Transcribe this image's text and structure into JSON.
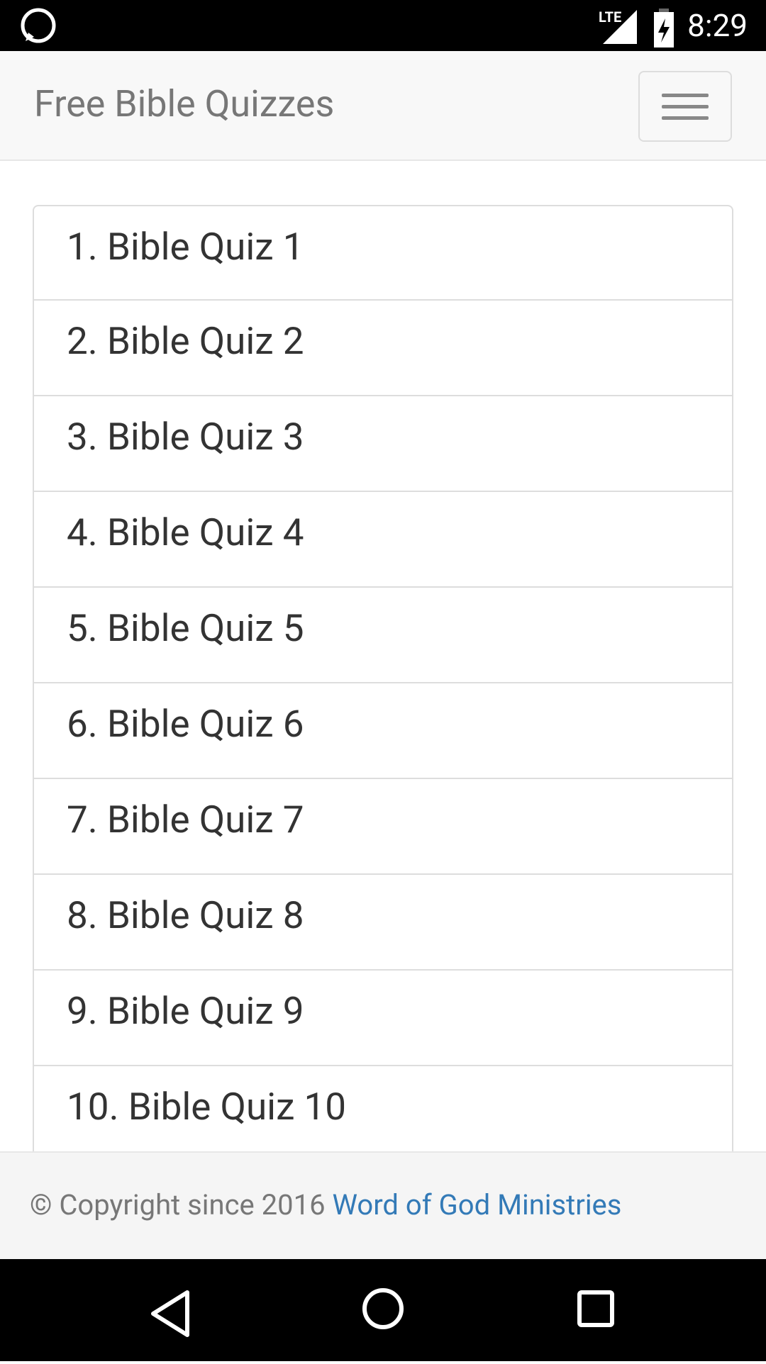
{
  "status_bar": {
    "network": "LTE",
    "time": "8:29"
  },
  "header": {
    "title": "Free Bible Quizzes"
  },
  "list": {
    "items": [
      "1. Bible Quiz 1",
      "2. Bible Quiz 2",
      "3. Bible Quiz 3",
      "4. Bible Quiz 4",
      "5. Bible Quiz 5",
      "6. Bible Quiz 6",
      "7. Bible Quiz 7",
      "8. Bible Quiz 8",
      "9. Bible Quiz 9",
      "10. Bible Quiz 10"
    ]
  },
  "footer": {
    "text": "© Copyright since 2016",
    "link": "Word of God Ministries"
  }
}
